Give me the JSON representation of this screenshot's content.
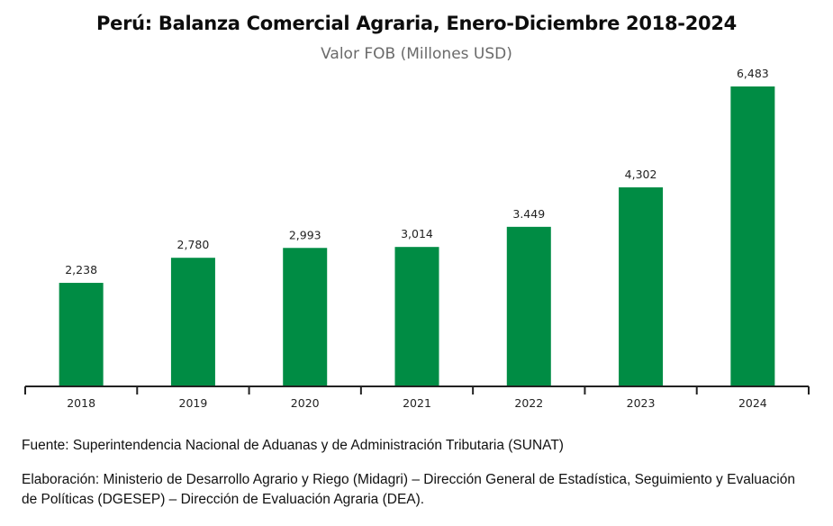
{
  "chart_data": {
    "type": "bar",
    "title": "Perú: Balanza Comercial Agraria, Enero-Diciembre 2018-2024",
    "subtitle": "Valor FOB  (Millones USD)",
    "categories": [
      "2018",
      "2019",
      "2020",
      "2021",
      "2022",
      "2023",
      "2024"
    ],
    "values": [
      2238,
      2780,
      2993,
      3014,
      3449,
      4302,
      6483
    ],
    "value_labels": [
      "2,238",
      "2,780",
      "2,993",
      "3,014",
      "3.449",
      "4,302",
      "6,483"
    ],
    "xlabel": "",
    "ylabel": "",
    "ylim": [
      0,
      6483
    ],
    "grid": false,
    "bar_color": "#008c44"
  },
  "notes": {
    "source": "Fuente: Superintendencia Nacional de Aduanas y de Administración Tributaria (SUNAT)",
    "elaboration": "Elaboración: Ministerio de Desarrollo Agrario y Riego (Midagri) – Dirección General de Estadística, Seguimiento y Evaluación de Políticas (DGESEP) – Dirección de Evaluación Agraria (DEA)."
  }
}
